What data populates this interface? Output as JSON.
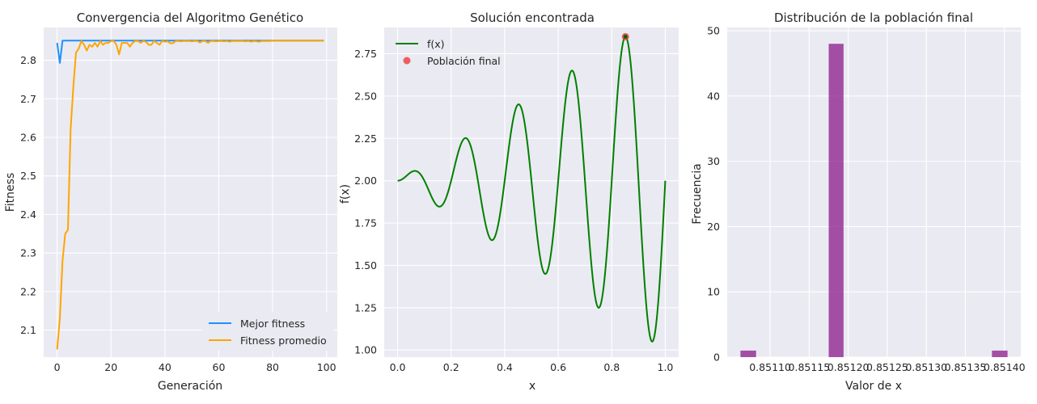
{
  "colors": {
    "background": "#eaeaf2",
    "grid": "#ffffff",
    "best": "#1e90ff",
    "avg": "#ffa500",
    "fx": "#008000",
    "population": "#ee4444",
    "best_point": "#006400",
    "hist": "#8b1a8b"
  },
  "chart_data": [
    {
      "type": "line",
      "title": "Convergencia del Algoritmo Genético",
      "xlabel": "Generación",
      "ylabel": "Fitness",
      "xlim": [
        -5,
        104
      ],
      "ylim": [
        2.03,
        2.885
      ],
      "xticks": [
        0,
        20,
        40,
        60,
        80,
        100
      ],
      "yticks": [
        2.1,
        2.2,
        2.3,
        2.4,
        2.5,
        2.6,
        2.7,
        2.8
      ],
      "ytick_labels": [
        "2.1",
        "2.2",
        "2.3",
        "2.4",
        "2.5",
        "2.6",
        "2.7",
        "2.8"
      ],
      "grid": true,
      "legend": "bottom-right",
      "series": [
        {
          "name": "Mejor fitness",
          "color": "#1e90ff",
          "x": [
            0,
            1,
            2,
            3,
            4,
            5,
            6,
            7,
            8,
            9,
            10,
            11,
            12,
            13,
            14,
            15,
            16,
            17,
            18,
            19,
            20,
            21,
            22,
            23,
            24,
            25,
            26,
            27,
            28,
            29,
            30,
            31,
            32,
            33,
            34,
            35,
            36,
            37,
            38,
            39,
            40,
            41,
            42,
            43,
            44,
            45,
            46,
            47,
            48,
            49,
            50,
            51,
            52,
            53,
            54,
            55,
            56,
            57,
            58,
            59,
            60,
            61,
            62,
            63,
            64,
            65,
            66,
            67,
            68,
            69,
            70,
            71,
            72,
            73,
            74,
            75,
            76,
            77,
            78,
            79,
            80,
            81,
            82,
            83,
            84,
            85,
            86,
            87,
            88,
            89,
            90,
            91,
            92,
            93,
            94,
            95,
            96,
            97,
            98,
            99
          ],
          "values": [
            2.845,
            2.793,
            2.851,
            2.851,
            2.851,
            2.851,
            2.851,
            2.851,
            2.851,
            2.851,
            2.851,
            2.851,
            2.851,
            2.851,
            2.851,
            2.851,
            2.851,
            2.851,
            2.851,
            2.851,
            2.851,
            2.851,
            2.851,
            2.851,
            2.851,
            2.851,
            2.851,
            2.851,
            2.851,
            2.851,
            2.851,
            2.851,
            2.851,
            2.851,
            2.851,
            2.851,
            2.851,
            2.851,
            2.851,
            2.851,
            2.851,
            2.851,
            2.851,
            2.851,
            2.851,
            2.851,
            2.851,
            2.851,
            2.851,
            2.851,
            2.851,
            2.851,
            2.851,
            2.851,
            2.851,
            2.851,
            2.851,
            2.851,
            2.851,
            2.851,
            2.851,
            2.851,
            2.851,
            2.851,
            2.851,
            2.851,
            2.851,
            2.851,
            2.851,
            2.851,
            2.851,
            2.851,
            2.851,
            2.851,
            2.851,
            2.851,
            2.851,
            2.851,
            2.851,
            2.851,
            2.851,
            2.851,
            2.851,
            2.851,
            2.851,
            2.851,
            2.851,
            2.851,
            2.851,
            2.851,
            2.851,
            2.851,
            2.851,
            2.851,
            2.851,
            2.851,
            2.851,
            2.851,
            2.851,
            2.851
          ]
        },
        {
          "name": "Fitness promedio",
          "color": "#ffa500",
          "x": [
            0,
            1,
            2,
            3,
            4,
            5,
            6,
            7,
            8,
            9,
            10,
            11,
            12,
            13,
            14,
            15,
            16,
            17,
            18,
            19,
            20,
            21,
            22,
            23,
            24,
            25,
            26,
            27,
            28,
            29,
            30,
            31,
            32,
            33,
            34,
            35,
            36,
            37,
            38,
            39,
            40,
            41,
            42,
            43,
            44,
            45,
            46,
            47,
            48,
            49,
            50,
            51,
            52,
            53,
            54,
            55,
            56,
            57,
            58,
            59,
            60,
            61,
            62,
            63,
            64,
            65,
            66,
            67,
            68,
            69,
            70,
            71,
            72,
            73,
            74,
            75,
            76,
            77,
            78,
            79,
            80,
            81,
            82,
            83,
            84,
            85,
            86,
            87,
            88,
            89,
            90,
            91,
            92,
            93,
            94,
            95,
            96,
            97,
            98,
            99
          ],
          "values": [
            2.05,
            2.13,
            2.28,
            2.35,
            2.36,
            2.62,
            2.73,
            2.82,
            2.83,
            2.85,
            2.84,
            2.825,
            2.84,
            2.835,
            2.845,
            2.835,
            2.85,
            2.84,
            2.845,
            2.845,
            2.85,
            2.85,
            2.84,
            2.815,
            2.845,
            2.845,
            2.845,
            2.835,
            2.845,
            2.85,
            2.85,
            2.845,
            2.85,
            2.848,
            2.84,
            2.84,
            2.85,
            2.845,
            2.84,
            2.85,
            2.848,
            2.849,
            2.844,
            2.844,
            2.85,
            2.85,
            2.849,
            2.85,
            2.85,
            2.85,
            2.849,
            2.85,
            2.85,
            2.846,
            2.85,
            2.85,
            2.845,
            2.85,
            2.85,
            2.849,
            2.85,
            2.85,
            2.849,
            2.85,
            2.848,
            2.85,
            2.85,
            2.85,
            2.85,
            2.85,
            2.849,
            2.85,
            2.848,
            2.85,
            2.849,
            2.848,
            2.85,
            2.85,
            2.85,
            2.85,
            2.851,
            2.851,
            2.851,
            2.851,
            2.851,
            2.851,
            2.851,
            2.851,
            2.851,
            2.851,
            2.851,
            2.851,
            2.851,
            2.851,
            2.851,
            2.851,
            2.851,
            2.851,
            2.851,
            2.851
          ]
        }
      ]
    },
    {
      "type": "line",
      "title": "Solución encontrada",
      "xlabel": "x",
      "ylabel": "f(x)",
      "xlim": [
        -0.05,
        1.05
      ],
      "ylim": [
        0.958,
        2.905
      ],
      "xticks": [
        0.0,
        0.2,
        0.4,
        0.6,
        0.8,
        1.0
      ],
      "xtick_labels": [
        "0.0",
        "0.2",
        "0.4",
        "0.6",
        "0.8",
        "1.0"
      ],
      "yticks": [
        1.0,
        1.25,
        1.5,
        1.75,
        2.0,
        2.25,
        2.5,
        2.75
      ],
      "ytick_labels": [
        "1.00",
        "1.25",
        "1.50",
        "1.75",
        "2.00",
        "2.25",
        "2.50",
        "2.75"
      ],
      "grid": true,
      "legend": "top-left",
      "function": "f(x) = x * sin(10 * pi * x) + 2",
      "series": [
        {
          "name": "f(x)",
          "color": "#008000",
          "kind": "line",
          "x_range": [
            0,
            1
          ]
        },
        {
          "name": "Población final",
          "color": "#ee4444",
          "kind": "scatter",
          "x": [
            0.8512
          ],
          "values": [
            2.8506
          ]
        }
      ],
      "best_point": {
        "x": 0.8512,
        "y": 2.8506,
        "color": "#006400"
      }
    },
    {
      "type": "bar",
      "title": "Distribución de la población final",
      "xlabel": "Valor de x",
      "ylabel": "Frecuencia",
      "xlim": [
        0.851045,
        0.851421
      ],
      "ylim": [
        0,
        50.5
      ],
      "xticks": [
        0.8511,
        0.85115,
        0.8512,
        0.85125,
        0.8513,
        0.85135,
        0.8514
      ],
      "xtick_labels": [
        "0.85110",
        "0.85115",
        "0.85120",
        "0.85125",
        "0.85130",
        "0.85135",
        "0.85140"
      ],
      "yticks": [
        0,
        10,
        20,
        30,
        40,
        50
      ],
      "ytick_labels": [
        "0",
        "10",
        "20",
        "30",
        "40",
        "50"
      ],
      "grid": true,
      "bins": [
        {
          "x0": 0.851062,
          "x1": 0.851082,
          "count": 1
        },
        {
          "x0": 0.851175,
          "x1": 0.851194,
          "count": 48
        },
        {
          "x0": 0.851384,
          "x1": 0.851404,
          "count": 1
        }
      ],
      "color": "#8b1a8b"
    }
  ]
}
